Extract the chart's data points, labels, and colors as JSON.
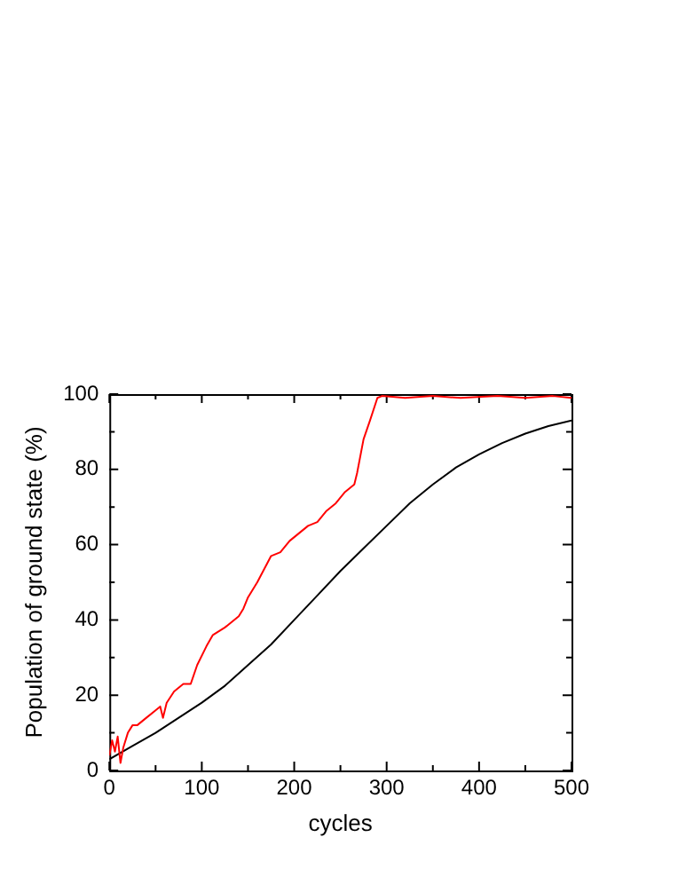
{
  "chart_data": {
    "type": "line",
    "xlabel": "cycles",
    "ylabel": "Population of ground state (%)",
    "xlim": [
      0,
      500
    ],
    "ylim": [
      0,
      100
    ],
    "xticks": [
      0,
      100,
      200,
      300,
      400,
      500
    ],
    "yticks": [
      0,
      20,
      40,
      60,
      80,
      100
    ],
    "grid": false,
    "legend": false,
    "marker": "none",
    "line_style": "solid",
    "series": [
      {
        "color": "#ff0000",
        "x": [
          0,
          3,
          6,
          9,
          12,
          15,
          20,
          25,
          30,
          40,
          50,
          55,
          58,
          62,
          70,
          80,
          88,
          95,
          105,
          112,
          125,
          140,
          145,
          150,
          160,
          175,
          185,
          195,
          205,
          215,
          225,
          235,
          245,
          255,
          265,
          268,
          275,
          282,
          290,
          295,
          320,
          350,
          380,
          420,
          450,
          480,
          500
        ],
        "values": [
          4,
          8,
          5,
          9,
          2,
          6,
          10,
          12,
          12,
          14,
          16,
          17,
          14,
          18,
          21,
          23,
          23,
          28,
          33,
          36,
          38,
          41,
          43,
          46,
          50,
          57,
          58,
          61,
          63,
          65,
          66,
          69,
          71,
          74,
          76,
          79,
          88,
          93,
          99,
          99.5,
          99,
          99.5,
          99,
          99.5,
          99,
          99.5,
          99
        ]
      },
      {
        "color": "#000000",
        "x": [
          0,
          25,
          50,
          75,
          100,
          125,
          150,
          175,
          200,
          225,
          250,
          275,
          300,
          325,
          350,
          375,
          400,
          425,
          450,
          475,
          500
        ],
        "values": [
          3,
          6.5,
          10,
          14,
          18,
          22.5,
          28,
          33.5,
          40,
          46.5,
          53,
          59,
          65,
          71,
          76,
          80.5,
          84,
          87,
          89.5,
          91.5,
          93
        ]
      }
    ]
  }
}
